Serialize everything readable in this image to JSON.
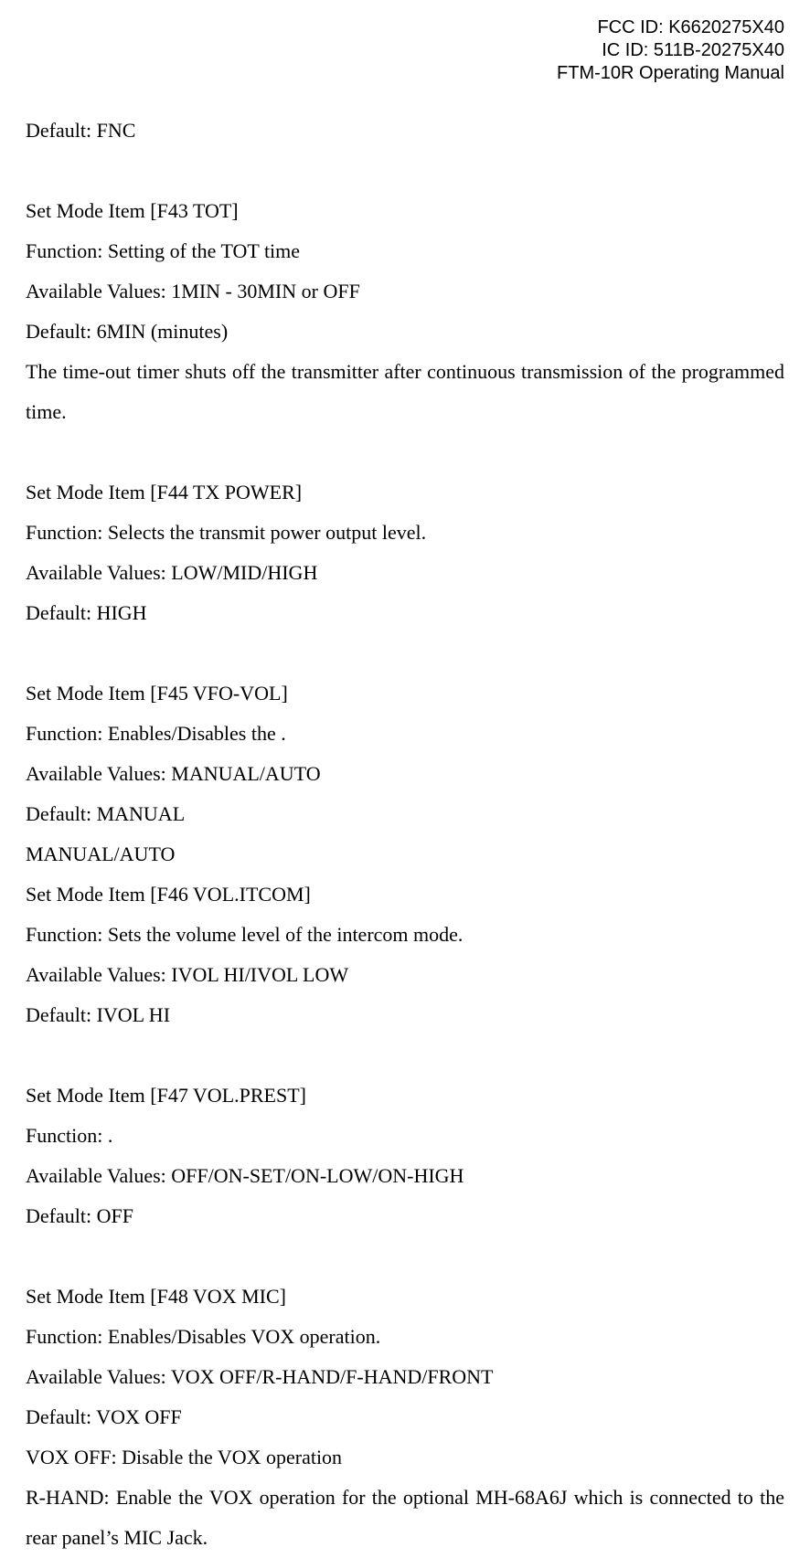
{
  "header": {
    "fcc_id": "FCC ID: K6620275X40",
    "ic_id": "IC ID: 511B-20275X40",
    "title": "FTM-10R Operating Manual"
  },
  "pre_default": "Default: FNC",
  "items": [
    {
      "name": "Set Mode Item [F43 TOT]",
      "function": "Function: Setting of the TOT time",
      "available": "Available Values: 1MIN - 30MIN or OFF",
      "default": "Default: 6MIN (minutes)",
      "description": "The time-out timer shuts off the transmitter after continuous transmission of the programmed time."
    },
    {
      "name": "Set Mode Item [F44 TX POWER]",
      "function": "Function: Selects the transmit power output level.",
      "available": "Available Values: LOW/MID/HIGH",
      "default": "Default: HIGH"
    },
    {
      "name": "Set Mode Item [F45 VFO-VOL]",
      "function": "Function: Enables/Disables the .",
      "available": "Available Values: MANUAL/AUTO",
      "default": "Default: MANUAL",
      "extra": "MANUAL/AUTO"
    },
    {
      "name": "Set Mode Item [F46 VOL.ITCOM]",
      "function": "Function: Sets the volume level of the intercom mode.",
      "available": "Available Values: IVOL HI/IVOL LOW",
      "default": "Default: IVOL HI"
    },
    {
      "name": "Set Mode Item [F47 VOL.PREST]",
      "function": "Function: .",
      "available": "Available Values: OFF/ON-SET/ON-LOW/ON-HIGH",
      "default": "Default: OFF"
    },
    {
      "name": "Set Mode Item [F48 VOX MIC]",
      "function": "Function: Enables/Disables VOX operation.",
      "available": "Available Values: VOX OFF/R-HAND/F-HAND/FRONT",
      "default": "Default: VOX OFF",
      "note1": "VOX OFF: Disable the VOX operation",
      "note2": "R-HAND: Enable the VOX operation for the optional MH-68A6J which is connected to the rear panel’s MIC Jack."
    }
  ]
}
